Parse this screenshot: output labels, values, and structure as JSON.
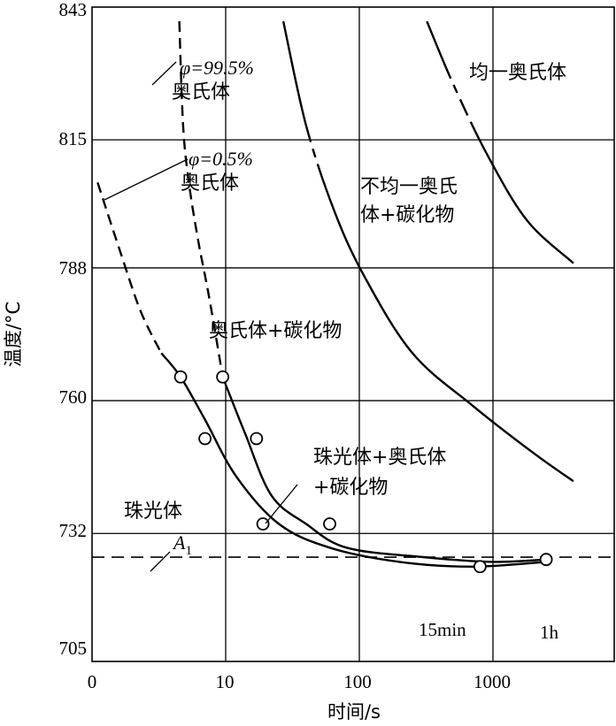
{
  "chart_data": {
    "type": "line",
    "x_scale": "log",
    "xlim": [
      1,
      4000
    ],
    "ylim": [
      705,
      843
    ],
    "xlabel": "时间/s",
    "ylabel": "温度/°C",
    "x_ticks": [
      "0",
      "10",
      "100",
      "1000"
    ],
    "y_ticks": [
      "843",
      "815",
      "788",
      "760",
      "732",
      "705"
    ],
    "series": [
      {
        "name": "φ=0.5% 奥氏体",
        "points": [
          [
            1.1,
            806
          ],
          [
            1.6,
            792
          ],
          [
            2.3,
            779
          ],
          [
            3.3,
            770
          ],
          [
            4.6,
            765
          ],
          [
            7,
            756
          ],
          [
            12,
            744
          ],
          [
            25,
            734
          ],
          [
            60,
            729
          ],
          [
            200,
            726
          ],
          [
            700,
            725
          ],
          [
            2500,
            726
          ]
        ],
        "markers": [
          [
            4.6,
            765
          ],
          [
            7,
            752
          ],
          [
            800,
            725
          ]
        ]
      },
      {
        "name": "φ=99.5% 奥氏体",
        "points": [
          [
            4.5,
            840
          ],
          [
            4.8,
            818
          ],
          [
            5.3,
            806
          ],
          [
            6.2,
            794
          ],
          [
            7.5,
            782
          ],
          [
            9.5,
            765
          ],
          [
            14,
            753
          ],
          [
            22,
            740
          ],
          [
            40,
            734
          ],
          [
            80,
            729
          ],
          [
            300,
            727
          ],
          [
            1000,
            726
          ],
          [
            2500,
            726.5
          ]
        ],
        "markers": [
          [
            9.5,
            765
          ],
          [
            17,
            752
          ],
          [
            19,
            734
          ],
          [
            60,
            734
          ],
          [
            2500,
            726.5
          ]
        ]
      },
      {
        "name": "不均一奥氏体+碳化物",
        "points": [
          [
            27,
            840
          ],
          [
            40,
            818
          ],
          [
            65,
            800
          ],
          [
            110,
            786
          ],
          [
            250,
            770
          ],
          [
            700,
            759
          ],
          [
            2000,
            749
          ],
          [
            4000,
            743
          ]
        ]
      },
      {
        "name": "均一奥氏体",
        "points": [
          [
            320,
            840
          ],
          [
            500,
            827
          ],
          [
            900,
            812
          ],
          [
            1800,
            798
          ],
          [
            4000,
            789
          ]
        ]
      }
    ],
    "annotations": {
      "phi_high": "φ=99.5%",
      "aust_high": "奥氏体",
      "phi_low": "φ=0.5%",
      "aust_low": "奥氏体",
      "homogeneous": "均一奥氏体",
      "inhomogeneous_1": "不均一奥氏",
      "inhomogeneous_2": "体+碳化物",
      "aust_carbide": "奥氏体+碳化物",
      "pearlite_mix_1": "珠光体+奥氏体",
      "pearlite_mix_2": "+碳化物",
      "pearlite": "珠光体",
      "a1": "A",
      "a1_sub": "1",
      "a1_temperature": 727,
      "t15min": "15min",
      "t1h": "1h"
    }
  }
}
